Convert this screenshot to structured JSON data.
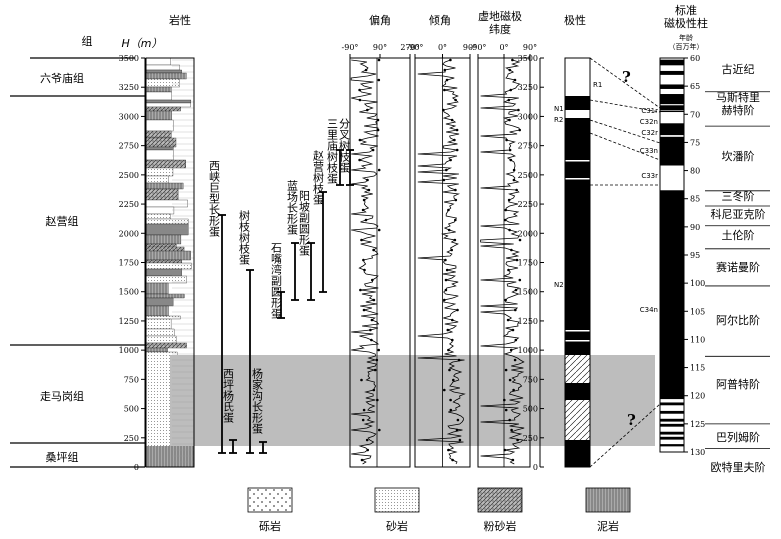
{
  "headers": {
    "group": "组",
    "depth": "H（m）",
    "lithology": "岩性",
    "declination": "偏角",
    "inclination": "倾角",
    "vgp_line1": "虚地磁极",
    "vgp_line2": "纬度",
    "polarity": "极性",
    "gpts_line1": "标准",
    "gpts_line2": "磁极性柱",
    "age_line1": "年龄",
    "age_line2": "（百万年）"
  },
  "formations": [
    "六爷庙组",
    "赵营组",
    "走马岗组",
    "桑坪组"
  ],
  "depth_ticks": [
    "3500",
    "3250",
    "3000",
    "2750",
    "2500",
    "2250",
    "2000",
    "1750",
    "1500",
    "1250",
    "1000",
    "750",
    "500",
    "250",
    "0"
  ],
  "dec_ticks": [
    "-90°",
    "90°",
    "270°"
  ],
  "inc_ticks": [
    "-90°",
    "0°",
    "90°"
  ],
  "vgp_ticks": [
    "-90°",
    "0°",
    "90°"
  ],
  "egg_labels": [
    "西峡巨型长形蛋",
    "树枝树枝蛋",
    "石嘴湾副圆形蛋",
    "蓝场长形蛋",
    "阳坡副圆形蛋",
    "赵营树枝蛋",
    "三里庙树枝蛋",
    "分叉树枝蛋",
    "西坪杨氏蛋",
    "杨家沟长形蛋"
  ],
  "polarity_labels": [
    "R1",
    "N1",
    "R2",
    "N2"
  ],
  "chron_labels": [
    "C31r",
    "C32n",
    "C32r",
    "C33n",
    "C33r",
    "C34n"
  ],
  "question_marks": [
    "?",
    "?"
  ],
  "age_ticks": [
    "60",
    "65",
    "70",
    "75",
    "80",
    "85",
    "90",
    "95",
    "100",
    "105",
    "110",
    "115",
    "120",
    "125",
    "130"
  ],
  "stages": [
    "古近纪",
    "马斯特里",
    "赫特阶",
    "坎潘阶",
    "三冬阶",
    "科尼亚克阶",
    "土伦阶",
    "赛诺曼阶",
    "阿尔比阶",
    "阿普特阶",
    "巴列姆阶",
    "欧特里夫阶"
  ],
  "legend": [
    "砾岩",
    "砂岩",
    "粉砂岩",
    "泥岩"
  ]
}
